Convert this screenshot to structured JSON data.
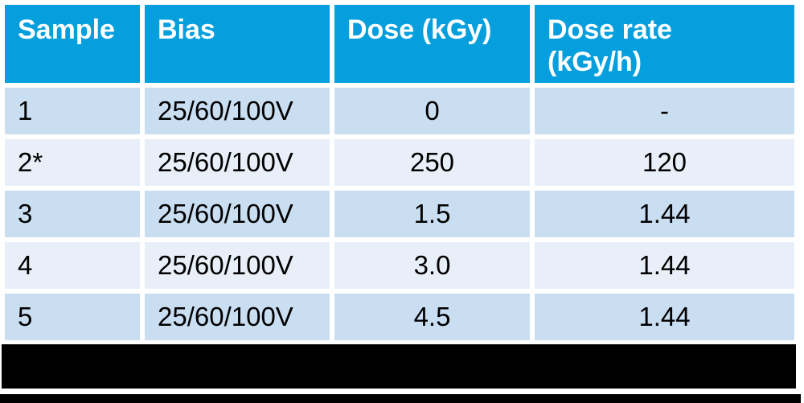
{
  "table": {
    "columns": [
      {
        "label": "Sample"
      },
      {
        "label": "Bias"
      },
      {
        "label": "Dose (kGy)"
      },
      {
        "label": "Dose rate (kGy/h)"
      }
    ],
    "rows": [
      {
        "sample": "1",
        "bias": "25/60/100V",
        "dose": "0",
        "dose_rate": "-"
      },
      {
        "sample": "2*",
        "bias": "25/60/100V",
        "dose": "250",
        "dose_rate": "120"
      },
      {
        "sample": "3",
        "bias": "25/60/100V",
        "dose": "1.5",
        "dose_rate": "1.44"
      },
      {
        "sample": "4",
        "bias": "25/60/100V",
        "dose": "3.0",
        "dose_rate": "1.44"
      },
      {
        "sample": "5",
        "bias": "25/60/100V",
        "dose": "4.5",
        "dose_rate": "1.44"
      }
    ]
  },
  "colors": {
    "header_bg": "#069fdd",
    "row_odd_bg": "#cadef2",
    "row_even_bg": "#e9eff8",
    "header_text": "#ffffff",
    "cell_text": "#000000",
    "redaction_bg": "#000000"
  }
}
